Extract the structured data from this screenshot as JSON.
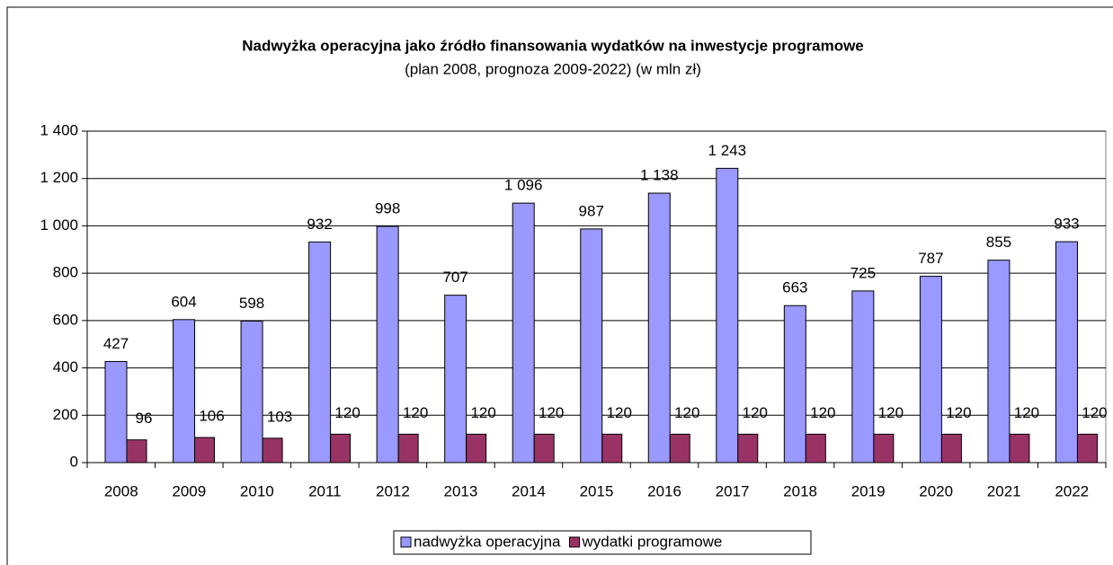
{
  "chart_data": {
    "type": "bar",
    "title": "Nadwyżka operacyjna jako źródło finansowania wydatków na inwestycje programowe",
    "subtitle": "(plan 2008, prognoza 2009-2022) (w mln zł)",
    "categories": [
      "2008",
      "2009",
      "2010",
      "2011",
      "2012",
      "2013",
      "2014",
      "2015",
      "2016",
      "2017",
      "2018",
      "2019",
      "2020",
      "2021",
      "2022"
    ],
    "series": [
      {
        "name": "nadwyżka operacyjna",
        "color": "#9999ff",
        "values": [
          427,
          604,
          598,
          932,
          998,
          707,
          1096,
          987,
          1138,
          1243,
          663,
          725,
          787,
          855,
          933
        ],
        "value_labels": [
          "427",
          "604",
          "598",
          "932",
          "998",
          "707",
          "1 096",
          "987",
          "1 138",
          "1 243",
          "663",
          "725",
          "787",
          "855",
          "933"
        ]
      },
      {
        "name": "wydatki programowe",
        "color": "#993366",
        "values": [
          96,
          106,
          103,
          120,
          120,
          120,
          120,
          120,
          120,
          120,
          120,
          120,
          120,
          120,
          120
        ]
      }
    ],
    "ylim": [
      0,
      1400
    ],
    "yticks": [
      0,
      200,
      400,
      600,
      800,
      {
        "value": 1000,
        "label": "1 000"
      },
      {
        "value": 1200,
        "label": "1 200"
      },
      {
        "value": 1400,
        "label": "1 400"
      }
    ],
    "grid": true,
    "legend": "bottom"
  }
}
